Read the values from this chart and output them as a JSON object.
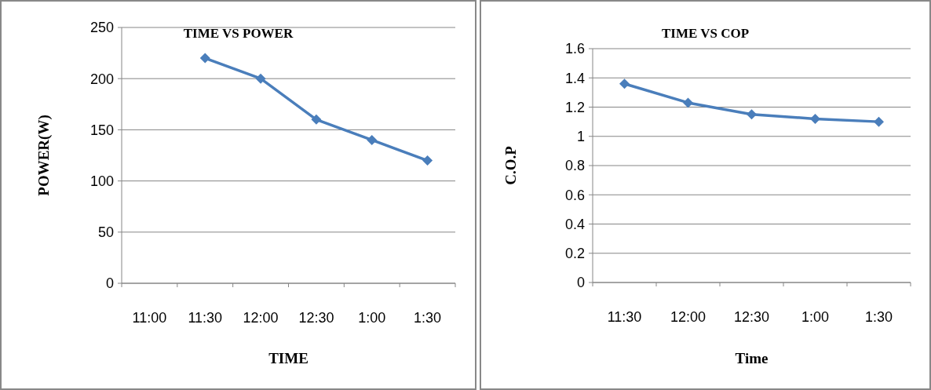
{
  "chart_data": [
    {
      "type": "line",
      "title": "TIME VS POWER",
      "xlabel": "TIME",
      "ylabel": "POWER(W)",
      "categories": [
        "11:00",
        "11:30",
        "12:00",
        "12:30",
        "1:00",
        "1:30"
      ],
      "series": [
        {
          "color": "#4a7ebb",
          "values": [
            null,
            220,
            200,
            160,
            140,
            120
          ]
        }
      ],
      "ylim": [
        0,
        250
      ],
      "yticks": [
        0,
        50,
        100,
        150,
        200,
        250
      ],
      "grid": "y",
      "marker": "diamond"
    },
    {
      "type": "line",
      "title": "TIME VS COP",
      "xlabel": "Time",
      "ylabel": "C.O.P",
      "categories": [
        "11:30",
        "12:00",
        "12:30",
        "1:00",
        "1:30"
      ],
      "series": [
        {
          "color": "#4a7ebb",
          "values": [
            1.36,
            1.23,
            1.15,
            1.12,
            1.1
          ]
        }
      ],
      "ylim": [
        0,
        1.6
      ],
      "yticks": [
        0,
        0.2,
        0.4,
        0.6,
        0.8,
        1,
        1.2,
        1.4,
        1.6
      ],
      "grid": "y",
      "marker": "diamond"
    }
  ]
}
